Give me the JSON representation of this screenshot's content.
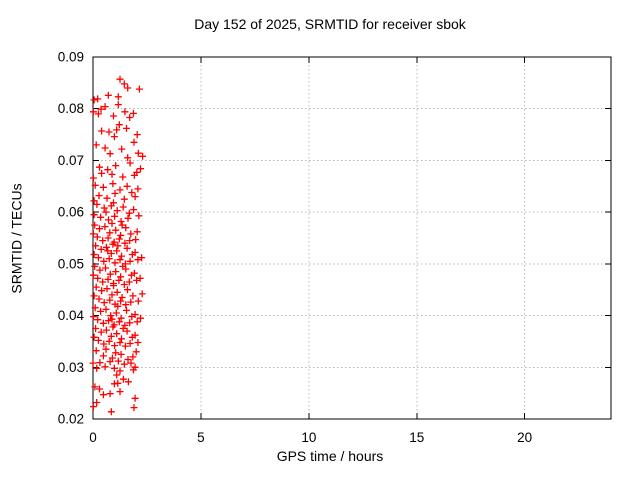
{
  "chart_data": {
    "type": "scatter",
    "title": "Day 152 of 2025, SRMTID for receiver sbok",
    "xlabel": "GPS time / hours",
    "ylabel": "SRMTID / TECUs",
    "xlim": [
      0,
      24
    ],
    "ylim": [
      0.02,
      0.09
    ],
    "xticks": {
      "values": [
        0,
        5,
        10,
        15,
        20
      ],
      "labels": [
        "0",
        "5",
        "10",
        "15",
        "20"
      ]
    },
    "yticks": {
      "values": [
        0.02,
        0.03,
        0.04,
        0.05,
        0.06,
        0.07,
        0.08,
        0.09
      ],
      "labels": [
        "0.02",
        "0.03",
        "0.04",
        "0.05",
        "0.06",
        "0.07",
        "0.08",
        "0.09"
      ]
    },
    "grid": true,
    "legend_position": "none",
    "marker": {
      "shape": "plus",
      "size": 7
    },
    "series": [
      {
        "name": "SRMTID",
        "points": [
          [
            1.25,
            0.0857
          ],
          [
            1.45,
            0.0848
          ],
          [
            1.61,
            0.084
          ],
          [
            2.15,
            0.0838
          ],
          [
            0.71,
            0.0826
          ],
          [
            1.17,
            0.0823
          ],
          [
            0.22,
            0.0819
          ],
          [
            0.05,
            0.0817
          ],
          [
            1.17,
            0.0808
          ],
          [
            0.56,
            0.0804
          ],
          [
            0.37,
            0.0799
          ],
          [
            0.02,
            0.0794
          ],
          [
            1.48,
            0.0794
          ],
          [
            1.87,
            0.0791
          ],
          [
            0.25,
            0.079
          ],
          [
            0.95,
            0.0786
          ],
          [
            1.7,
            0.0783
          ],
          [
            1.22,
            0.0769
          ],
          [
            1.55,
            0.0762
          ],
          [
            1.1,
            0.0759
          ],
          [
            0.4,
            0.0757
          ],
          [
            0.74,
            0.0755
          ],
          [
            2.05,
            0.075
          ],
          [
            0.99,
            0.0746
          ],
          [
            1.9,
            0.0735
          ],
          [
            0.15,
            0.073
          ],
          [
            0.56,
            0.0724
          ],
          [
            1.33,
            0.0722
          ],
          [
            2.1,
            0.0714
          ],
          [
            0.79,
            0.0713
          ],
          [
            2.3,
            0.0708
          ],
          [
            1.61,
            0.0705
          ],
          [
            1.72,
            0.0695
          ],
          [
            1.05,
            0.069
          ],
          [
            0.3,
            0.0687
          ],
          [
            2.2,
            0.0684
          ],
          [
            0.68,
            0.0682
          ],
          [
            2.03,
            0.0677
          ],
          [
            0.4,
            0.0675
          ],
          [
            0.88,
            0.0673
          ],
          [
            1.92,
            0.0671
          ],
          [
            1.38,
            0.0668
          ],
          [
            0.02,
            0.0666
          ],
          [
            0.92,
            0.0655
          ],
          [
            0.1,
            0.0652
          ],
          [
            1.58,
            0.065
          ],
          [
            0.48,
            0.0648
          ],
          [
            2.08,
            0.0645
          ],
          [
            1.25,
            0.0643
          ],
          [
            1.8,
            0.0638
          ],
          [
            1.02,
            0.0636
          ],
          [
            0.28,
            0.0632
          ],
          [
            1.95,
            0.063
          ],
          [
            0.65,
            0.0627
          ],
          [
            1.45,
            0.0625
          ],
          [
            0.05,
            0.0622
          ],
          [
            0.95,
            0.0618
          ],
          [
            0.18,
            0.0615
          ],
          [
            0.85,
            0.0612
          ],
          [
            1.4,
            0.061
          ],
          [
            0.52,
            0.0608
          ],
          [
            1.88,
            0.0605
          ],
          [
            1.12,
            0.0603
          ],
          [
            0.6,
            0.06
          ],
          [
            1.68,
            0.0598
          ],
          [
            0.05,
            0.0595
          ],
          [
            2.12,
            0.0593
          ],
          [
            1.0,
            0.0592
          ],
          [
            0.35,
            0.059
          ],
          [
            1.62,
            0.0588
          ],
          [
            0.72,
            0.0585
          ],
          [
            1.3,
            0.0582
          ],
          [
            0.88,
            0.0578
          ],
          [
            0.08,
            0.0575
          ],
          [
            1.35,
            0.0575
          ],
          [
            0.55,
            0.0572
          ],
          [
            1.52,
            0.057
          ],
          [
            0.3,
            0.0568
          ],
          [
            1.05,
            0.0565
          ],
          [
            2.05,
            0.0562
          ],
          [
            0.78,
            0.056
          ],
          [
            1.75,
            0.0558
          ],
          [
            0.02,
            0.0558
          ],
          [
            1.28,
            0.0555
          ],
          [
            0.2,
            0.0552
          ],
          [
            0.7,
            0.055
          ],
          [
            1.22,
            0.0548
          ],
          [
            1.98,
            0.0547
          ],
          [
            0.45,
            0.0545
          ],
          [
            1.7,
            0.0545
          ],
          [
            0.98,
            0.0542
          ],
          [
            1.48,
            0.054
          ],
          [
            0.12,
            0.0535
          ],
          [
            0.92,
            0.0538
          ],
          [
            1.15,
            0.0535
          ],
          [
            0.62,
            0.0532
          ],
          [
            1.58,
            0.053
          ],
          [
            0.38,
            0.0528
          ],
          [
            1.1,
            0.0525
          ],
          [
            0.68,
            0.0525
          ],
          [
            1.95,
            0.0522
          ],
          [
            0.85,
            0.052
          ],
          [
            1.82,
            0.0518
          ],
          [
            0.05,
            0.0518
          ],
          [
            1.32,
            0.0515
          ],
          [
            0.25,
            0.0512
          ],
          [
            2.25,
            0.0512
          ],
          [
            0.75,
            0.051
          ],
          [
            1.25,
            0.0508
          ],
          [
            2.08,
            0.0508
          ],
          [
            0.5,
            0.0505
          ],
          [
            1.72,
            0.0505
          ],
          [
            1.02,
            0.0502
          ],
          [
            1.5,
            0.05
          ],
          [
            0.08,
            0.0495
          ],
          [
            1.38,
            0.0495
          ],
          [
            0.58,
            0.0492
          ],
          [
            1.52,
            0.049
          ],
          [
            0.32,
            0.0488
          ],
          [
            1.05,
            0.0485
          ],
          [
            1.92,
            0.0482
          ],
          [
            0.8,
            0.048
          ],
          [
            0.02,
            0.0478
          ],
          [
            1.78,
            0.0478
          ],
          [
            1.28,
            0.0475
          ],
          [
            0.22,
            0.0472
          ],
          [
            2.18,
            0.0472
          ],
          [
            0.7,
            0.047
          ],
          [
            1.2,
            0.0468
          ],
          [
            2.02,
            0.0468
          ],
          [
            0.45,
            0.0465
          ],
          [
            1.68,
            0.0465
          ],
          [
            0.95,
            0.0462
          ],
          [
            1.45,
            0.046
          ],
          [
            0.95,
            0.0458
          ],
          [
            0.15,
            0.0455
          ],
          [
            0.65,
            0.0452
          ],
          [
            1.6,
            0.045
          ],
          [
            0.4,
            0.0448
          ],
          [
            1.12,
            0.0445
          ],
          [
            2.28,
            0.0442
          ],
          [
            0.88,
            0.044
          ],
          [
            1.85,
            0.0438
          ],
          [
            0.05,
            0.0438
          ],
          [
            1.35,
            0.0435
          ],
          [
            0.28,
            0.0432
          ],
          [
            0.78,
            0.043
          ],
          [
            1.28,
            0.0428
          ],
          [
            2.1,
            0.0428
          ],
          [
            1.75,
            0.0426
          ],
          [
            0.52,
            0.0425
          ],
          [
            1.02,
            0.0422
          ],
          [
            1.52,
            0.0421
          ],
          [
            1.15,
            0.0418
          ],
          [
            0.1,
            0.0415
          ],
          [
            0.6,
            0.0412
          ],
          [
            1.55,
            0.041
          ],
          [
            0.35,
            0.0408
          ],
          [
            1.08,
            0.0405
          ],
          [
            1.95,
            0.0402
          ],
          [
            0.82,
            0.04
          ],
          [
            1.8,
            0.0398
          ],
          [
            0.02,
            0.0398
          ],
          [
            1.3,
            0.0395
          ],
          [
            2.2,
            0.0395
          ],
          [
            0.88,
            0.0393
          ],
          [
            0.22,
            0.0392
          ],
          [
            0.72,
            0.039
          ],
          [
            1.22,
            0.0388
          ],
          [
            2.05,
            0.0388
          ],
          [
            0.48,
            0.0385
          ],
          [
            1.7,
            0.0386
          ],
          [
            0.98,
            0.0382
          ],
          [
            1.48,
            0.0381
          ],
          [
            0.92,
            0.0378
          ],
          [
            0.12,
            0.0375
          ],
          [
            1.4,
            0.0375
          ],
          [
            0.62,
            0.0372
          ],
          [
            1.58,
            0.037
          ],
          [
            0.38,
            0.0368
          ],
          [
            1.1,
            0.0365
          ],
          [
            1.95,
            0.0362
          ],
          [
            0.85,
            0.036
          ],
          [
            0.05,
            0.0358
          ],
          [
            1.82,
            0.0358
          ],
          [
            1.32,
            0.0355
          ],
          [
            0.25,
            0.0352
          ],
          [
            0.75,
            0.035
          ],
          [
            1.25,
            0.0348
          ],
          [
            2.08,
            0.0348
          ],
          [
            1.72,
            0.0346
          ],
          [
            0.5,
            0.0345
          ],
          [
            1.0,
            0.0342
          ],
          [
            1.5,
            0.0341
          ],
          [
            0.6,
            0.0335
          ],
          [
            0.15,
            0.0332
          ],
          [
            2.0,
            0.033
          ],
          [
            1.05,
            0.0328
          ],
          [
            1.3,
            0.0325
          ],
          [
            0.48,
            0.0322
          ],
          [
            1.85,
            0.032
          ],
          [
            0.9,
            0.0318
          ],
          [
            1.62,
            0.0315
          ],
          [
            1.17,
            0.0312
          ],
          [
            0.79,
            0.0311
          ],
          [
            0.32,
            0.0309
          ],
          [
            0.0,
            0.0308
          ],
          [
            1.76,
            0.0308
          ],
          [
            1.45,
            0.0306
          ],
          [
            0.56,
            0.0301
          ],
          [
            1.95,
            0.03
          ],
          [
            0.17,
            0.0298
          ],
          [
            0.99,
            0.0298
          ],
          [
            1.87,
            0.0295
          ],
          [
            1.25,
            0.0293
          ],
          [
            1.1,
            0.0285
          ],
          [
            1.41,
            0.0277
          ],
          [
            1.64,
            0.0272
          ],
          [
            1.15,
            0.0269
          ],
          [
            0.99,
            0.0268
          ],
          [
            0.09,
            0.0262
          ],
          [
            0.3,
            0.0258
          ],
          [
            1.25,
            0.0253
          ],
          [
            0.79,
            0.0249
          ],
          [
            0.48,
            0.0247
          ],
          [
            1.95,
            0.024
          ],
          [
            0.17,
            0.0232
          ],
          [
            0.02,
            0.0224
          ],
          [
            1.9,
            0.0222
          ],
          [
            0.85,
            0.0214
          ]
        ]
      }
    ]
  },
  "colors": {
    "background": "#ffffff",
    "axis": "#000000",
    "grid": "#b6b6b6",
    "marker": "#ff0000",
    "text": "#000000"
  }
}
